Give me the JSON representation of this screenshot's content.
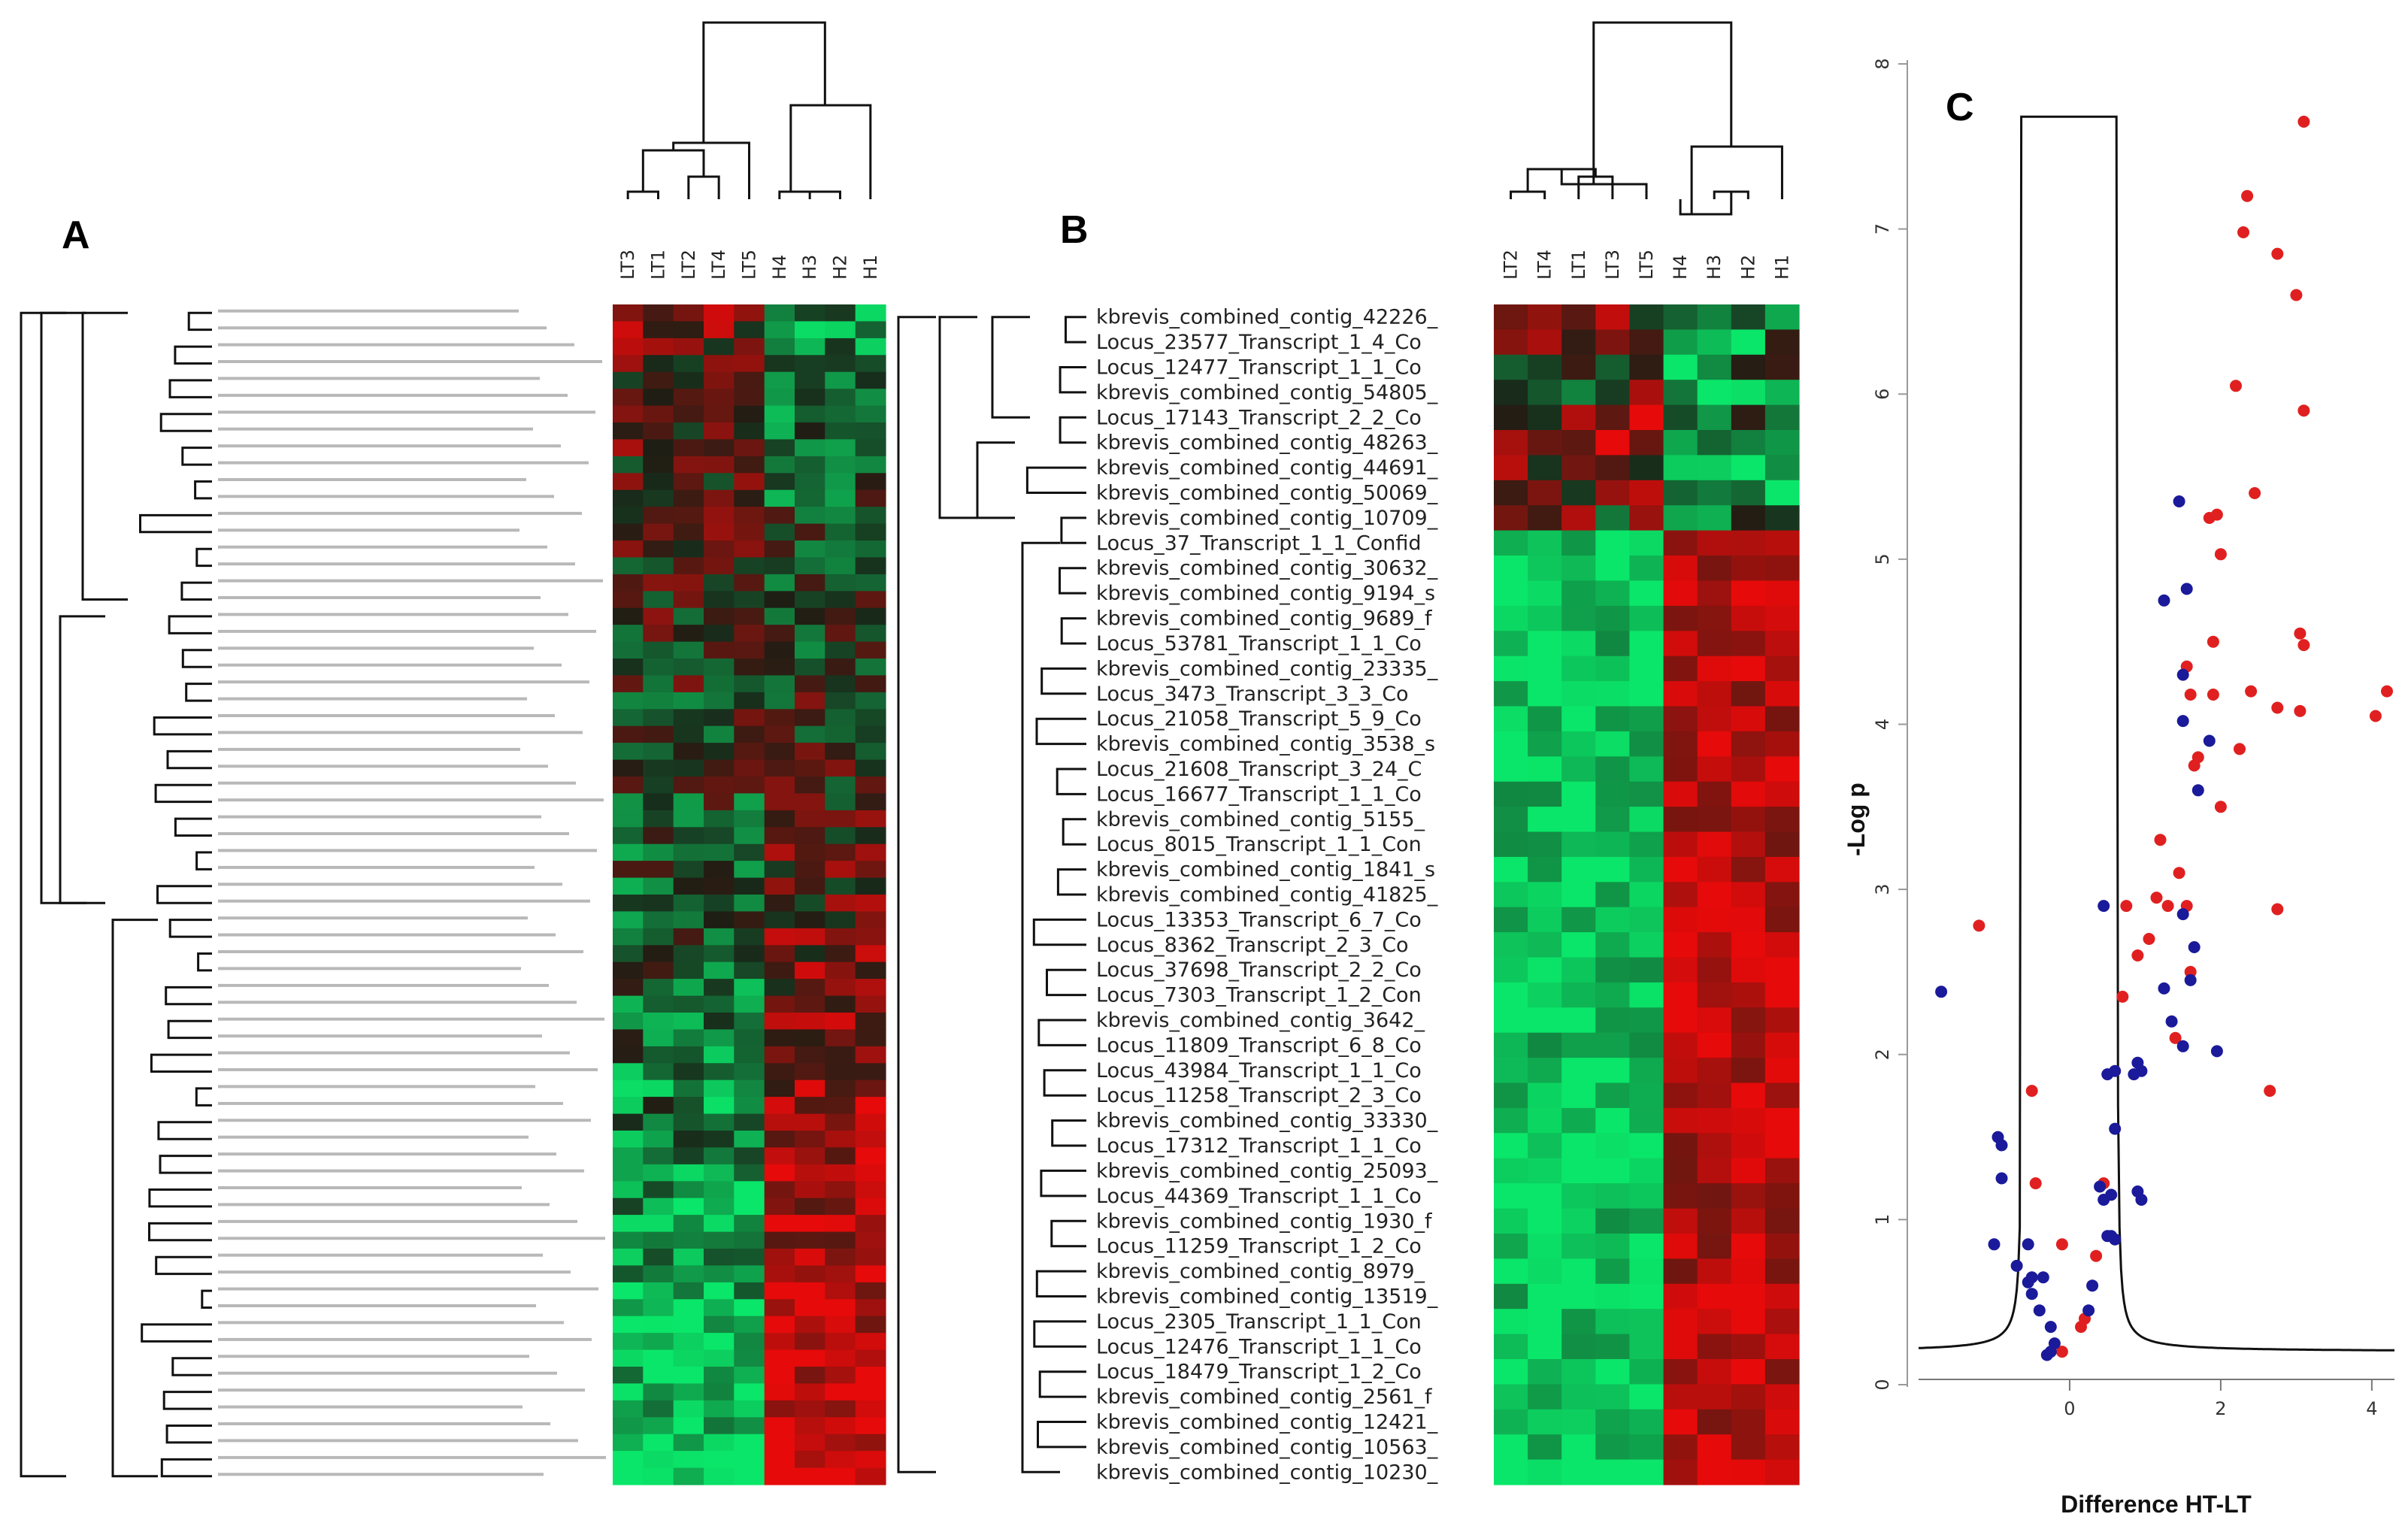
{
  "panels": {
    "a": "A",
    "b": "B",
    "c": "C"
  },
  "heatmap_a": {
    "columns": [
      "LT3",
      "LT1",
      "LT2",
      "LT4",
      "LT5",
      "H4",
      "H3",
      "H2",
      "H1"
    ],
    "n_rows": 70
  },
  "heatmap_b": {
    "columns": [
      "LT2",
      "LT4",
      "LT1",
      "LT3",
      "LT5",
      "H4",
      "H3",
      "H2",
      "H1"
    ],
    "rows": [
      "kbrevis_combined_contig_42226_",
      "Locus_23577_Transcript_1_4_Co",
      "Locus_12477_Transcript_1_1_Co",
      "kbrevis_combined_contig_54805_",
      "Locus_17143_Transcript_2_2_Co",
      "kbrevis_combined_contig_48263_",
      "kbrevis_combined_contig_44691_",
      "kbrevis_combined_contig_50069_",
      "kbrevis_combined_contig_10709_",
      "Locus_37_Transcript_1_1_Confid",
      "kbrevis_combined_contig_30632_",
      "kbrevis_combined_contig_9194_s",
      "kbrevis_combined_contig_9689_f",
      "Locus_53781_Transcript_1_1_Co",
      "kbrevis_combined_contig_23335_",
      "Locus_3473_Transcript_3_3_Co",
      "Locus_21058_Transcript_5_9_Co",
      "kbrevis_combined_contig_3538_s",
      "Locus_21608_Transcript_3_24_C",
      "Locus_16677_Transcript_1_1_Co",
      "kbrevis_combined_contig_5155_",
      "Locus_8015_Transcript_1_1_Con",
      "kbrevis_combined_contig_1841_s",
      "kbrevis_combined_contig_41825_",
      "Locus_13353_Transcript_6_7_Co",
      "Locus_8362_Transcript_2_3_Co",
      "Locus_37698_Transcript_2_2_Co",
      "Locus_7303_Transcript_1_2_Con",
      "kbrevis_combined_contig_3642_",
      "Locus_11809_Transcript_6_8_Co",
      "Locus_43984_Transcript_1_1_Co",
      "Locus_11258_Transcript_2_3_Co",
      "kbrevis_combined_contig_33330_",
      "Locus_17312_Transcript_1_1_Co",
      "kbrevis_combined_contig_25093_",
      "Locus_44369_Transcript_1_1_Co",
      "kbrevis_combined_contig_1930_f",
      "Locus_11259_Transcript_1_2_Co",
      "kbrevis_combined_contig_8979_",
      "kbrevis_combined_contig_13519_",
      "Locus_2305_Transcript_1_1_Con",
      "Locus_12476_Transcript_1_1_Co",
      "Locus_18479_Transcript_1_2_Co",
      "kbrevis_combined_contig_2561_f",
      "kbrevis_combined_contig_12421_",
      "kbrevis_combined_contig_10563_",
      "kbrevis_combined_contig_10230_"
    ]
  },
  "chart_data": {
    "type": "scatter",
    "title": "",
    "xlabel": "Difference HT-LT",
    "ylabel": "-Log p",
    "xlim": [
      -2.0,
      4.3
    ],
    "ylim": [
      0,
      8
    ],
    "xticks": [
      0,
      2,
      4
    ],
    "yticks": [
      0,
      1,
      2,
      3,
      4,
      5,
      6,
      7,
      8
    ],
    "series": [
      {
        "color": "#e02020",
        "points": [
          [
            3.1,
            7.65
          ],
          [
            2.35,
            7.2
          ],
          [
            2.3,
            6.98
          ],
          [
            2.75,
            6.85
          ],
          [
            3.0,
            6.6
          ],
          [
            2.2,
            6.05
          ],
          [
            3.1,
            5.9
          ],
          [
            2.45,
            5.4
          ],
          [
            1.85,
            5.25
          ],
          [
            1.95,
            5.27
          ],
          [
            2.0,
            5.03
          ],
          [
            3.05,
            4.55
          ],
          [
            3.1,
            4.48
          ],
          [
            1.9,
            4.5
          ],
          [
            1.55,
            4.35
          ],
          [
            4.2,
            4.2
          ],
          [
            2.4,
            4.2
          ],
          [
            4.05,
            4.05
          ],
          [
            2.75,
            4.1
          ],
          [
            3.05,
            4.08
          ],
          [
            1.6,
            4.18
          ],
          [
            1.9,
            4.18
          ],
          [
            2.25,
            3.85
          ],
          [
            1.7,
            3.8
          ],
          [
            1.65,
            3.75
          ],
          [
            2.0,
            3.5
          ],
          [
            1.2,
            3.3
          ],
          [
            1.45,
            3.1
          ],
          [
            1.15,
            2.95
          ],
          [
            1.3,
            2.9
          ],
          [
            1.55,
            2.9
          ],
          [
            0.75,
            2.9
          ],
          [
            2.75,
            2.88
          ],
          [
            -1.2,
            2.78
          ],
          [
            1.05,
            2.7
          ],
          [
            0.9,
            2.6
          ],
          [
            1.6,
            2.5
          ],
          [
            0.7,
            2.35
          ],
          [
            1.4,
            2.1
          ],
          [
            -0.5,
            1.78
          ],
          [
            2.65,
            1.78
          ],
          [
            -0.45,
            1.22
          ],
          [
            0.45,
            1.22
          ],
          [
            -0.1,
            0.85
          ],
          [
            0.35,
            0.78
          ],
          [
            0.2,
            0.4
          ],
          [
            0.15,
            0.35
          ],
          [
            -0.1,
            0.2
          ]
        ]
      },
      {
        "color": "#1a1a9a",
        "points": [
          [
            1.25,
            4.75
          ],
          [
            1.45,
            5.35
          ],
          [
            1.55,
            4.82
          ],
          [
            1.5,
            4.3
          ],
          [
            1.5,
            4.02
          ],
          [
            1.85,
            3.9
          ],
          [
            1.7,
            3.6
          ],
          [
            0.45,
            2.9
          ],
          [
            1.5,
            2.85
          ],
          [
            1.65,
            2.65
          ],
          [
            1.6,
            2.45
          ],
          [
            1.25,
            2.4
          ],
          [
            -1.7,
            2.38
          ],
          [
            1.35,
            2.2
          ],
          [
            1.5,
            2.05
          ],
          [
            1.95,
            2.02
          ],
          [
            0.9,
            1.95
          ],
          [
            0.95,
            1.9
          ],
          [
            0.5,
            1.88
          ],
          [
            0.6,
            1.9
          ],
          [
            0.85,
            1.88
          ],
          [
            0.6,
            1.55
          ],
          [
            -0.95,
            1.5
          ],
          [
            -0.9,
            1.45
          ],
          [
            -0.9,
            1.25
          ],
          [
            0.4,
            1.2
          ],
          [
            0.55,
            1.15
          ],
          [
            0.9,
            1.17
          ],
          [
            0.95,
            1.12
          ],
          [
            0.45,
            1.12
          ],
          [
            -1.0,
            0.85
          ],
          [
            -0.55,
            0.85
          ],
          [
            0.5,
            0.9
          ],
          [
            0.6,
            0.88
          ],
          [
            -0.7,
            0.72
          ],
          [
            -0.5,
            0.65
          ],
          [
            -0.55,
            0.62
          ],
          [
            -0.35,
            0.65
          ],
          [
            -0.5,
            0.55
          ],
          [
            -0.4,
            0.45
          ],
          [
            0.3,
            0.6
          ],
          [
            0.25,
            0.45
          ],
          [
            -0.25,
            0.35
          ],
          [
            -0.2,
            0.25
          ],
          [
            -0.25,
            0.2
          ],
          [
            -0.3,
            0.18
          ],
          [
            0.55,
            0.9
          ]
        ]
      }
    ],
    "curve": "volcano-threshold"
  }
}
